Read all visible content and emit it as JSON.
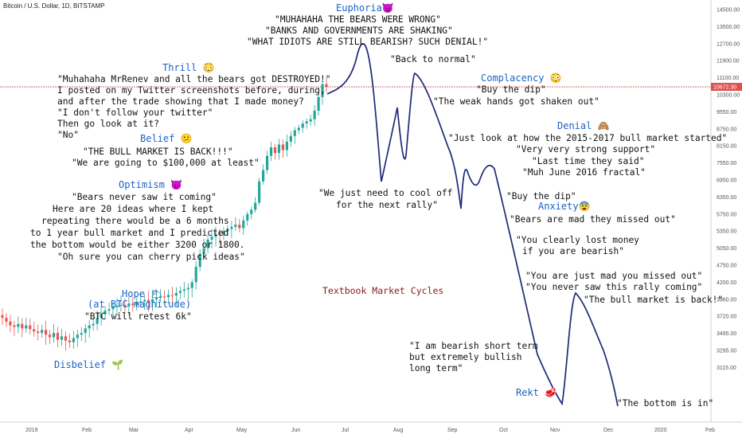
{
  "header": {
    "title": "Bitcoin / U.S. Dollar, 1D, BITSTAMP"
  },
  "chart_data": {
    "type": "line",
    "title": "Textbook Market Cycles",
    "ylim": [
      3115,
      14500
    ],
    "yticks": [
      "14500.00",
      "13500.00",
      "12700.00",
      "11900.00",
      "11100.00",
      "10300.00",
      "9550.00",
      "8750.00",
      "8150.00",
      "7550.00",
      "6950.00",
      "6350.00",
      "5750.00",
      "5350.00",
      "5050.00",
      "4750.00",
      "4200.00",
      "3960.00",
      "3720.00",
      "3495.00",
      "3295.00",
      "3115.00"
    ],
    "ytick_values": [
      14500,
      13500,
      12700,
      11900,
      11100,
      10300,
      9550,
      8750,
      8150,
      7550,
      6950,
      6350,
      5750,
      5350,
      5050,
      4750,
      4200,
      3960,
      3720,
      3495,
      3295,
      3115
    ],
    "xticks": [
      "2019",
      "Feb",
      "Mar",
      "Apr",
      "May",
      "Jun",
      "Jul",
      "Aug",
      "Sep",
      "Oct",
      "Nov",
      "Dec",
      "2020",
      "Feb"
    ],
    "price_label": "10672.30",
    "price_value": 10672.3,
    "price_line_color": "#e05050",
    "up_color": "#26a69a",
    "down_color": "#ef5350",
    "cycle_line_color": "#1e2a78",
    "candles_approx": [
      3700,
      3650,
      3600,
      3580,
      3620,
      3560,
      3600,
      3550,
      3520,
      3500,
      3540,
      3480,
      3450,
      3500,
      3420,
      3460,
      3410,
      3390,
      3440,
      3480,
      3500,
      3560,
      3600,
      3620,
      3700,
      3750,
      3800,
      3820,
      3850,
      3870,
      3880,
      3860,
      3900,
      3880,
      3910,
      3930,
      3950,
      3920,
      3960,
      3980,
      4000,
      3990,
      4020,
      4010,
      4050,
      4080,
      4100,
      4120,
      4200,
      4700,
      4950,
      5050,
      5200,
      5250,
      5300,
      5280,
      5350,
      5400,
      5450,
      5500,
      5420,
      5600,
      5750,
      5900,
      6150,
      6900,
      7300,
      7800,
      8100,
      7900,
      8200,
      8000,
      8300,
      8500,
      8700,
      8800,
      9000,
      9100,
      9200,
      9600,
      10200,
      10800,
      10672
    ]
  },
  "phases": [
    {
      "label": "Disbelief",
      "emoji": "🌱"
    },
    {
      "label": "Hope",
      "emoji": "🌥"
    },
    {
      "label": "(at BTC magnitude)",
      "emoji": ""
    },
    {
      "label": "Optimism",
      "emoji": "😈"
    },
    {
      "label": "Belief",
      "emoji": "😕"
    },
    {
      "label": "Thrill",
      "emoji": "😳"
    },
    {
      "label": "Euphoria",
      "emoji": "😈"
    },
    {
      "label": "Complacency",
      "emoji": "😳"
    },
    {
      "label": "Anxiety",
      "emoji": "😨"
    },
    {
      "label": "Denial",
      "emoji": "🙈"
    },
    {
      "label": "Rekt",
      "emoji": "🥩"
    }
  ],
  "quotes": {
    "hope": [
      "\"BTC will retest 6k\""
    ],
    "optimism": [
      "\"Bears never saw it coming\"",
      "Here are 20 ideas where I kept",
      "repeating there would be a 6 months",
      "to 1 year bull market and I predicted",
      "the bottom would be either 3200 or 1800.",
      "\"Oh sure you can cherry pick ideas\""
    ],
    "belief": [
      "\"THE BULL MARKET IS BACK!!!\"",
      "\"We are going to $100,000 at least\""
    ],
    "thrill": [
      "\"Muhahaha MrRenev and all the bears got DESTROYED!\"",
      "I posted on my Twitter screenshots before, during,",
      "and after the trade showing that I made money?",
      "\"I don't follow your twitter\"",
      "Then go look at it?",
      "\"No\""
    ],
    "euphoria": [
      "\"MUHAHAHA THE BEARS WERE WRONG\"",
      "\"BANKS AND GOVERNMENTS ARE SHAKING\"",
      "\"WHAT IDIOTS ARE STILL BEARISH? SUCH DENIAL!\""
    ],
    "back_to_normal": [
      "\"Back to normal\""
    ],
    "complacency": [
      "\"Buy the dip\"",
      "\"The weak hands got shaken out\""
    ],
    "cool_off": [
      "\"We just need to cool off",
      "for the next rally\""
    ],
    "denial": [
      "\"Just look at how the 2015-2017 bull market started\"",
      "\"Very very strong support\"",
      "\"Last time they said\"",
      "\"Muh June 2016 fractal\""
    ],
    "buy_dip": [
      "\"Buy the dip\""
    ],
    "anxiety": [
      "\"Bears are mad they missed out\""
    ],
    "lost_money": [
      "\"You clearly lost money",
      "if you are bearish\""
    ],
    "missed_out": [
      "\"You are just mad you missed out\"",
      "\"You never saw this rally coming\""
    ],
    "bull_back": [
      "\"The bull market is back!\""
    ],
    "bearish_short": [
      "\"I am bearish short term",
      "but extremely bullish",
      "long term\""
    ],
    "bottom": [
      "\"The bottom is in\""
    ]
  }
}
